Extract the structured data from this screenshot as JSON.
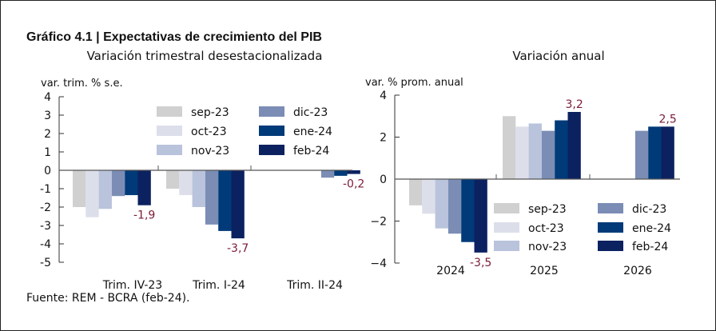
{
  "title": "Gráfico 4.1 | Expectativas de crecimiento del PIB",
  "source": "Fuente: REM - BCRA (feb-24).",
  "colors": {
    "sep-23": "#d0d0d0",
    "oct-23": "#dcdfea",
    "nov-23": "#b9c3dc",
    "dic-23": "#7b8db5",
    "ene-24": "#003a78",
    "feb-24": "#0c2160",
    "label": "#7a1c36"
  },
  "chart_data": [
    {
      "type": "bar",
      "title": "Variación trimestral desestacionalizada",
      "ylabel": "var. trim. % s.e.",
      "xlabel": "",
      "ylim": [
        -5,
        4
      ],
      "yticks": [
        4,
        3,
        2,
        1,
        0,
        -1,
        -2,
        -3,
        -4,
        -5
      ],
      "categories": [
        "Trim. IV-23",
        "Trim. I-24",
        "Trim. II-24"
      ],
      "legend": [
        "sep-23",
        "oct-23",
        "nov-23",
        "dic-23",
        "ene-24",
        "feb-24"
      ],
      "legend_position": "top-right",
      "series": [
        {
          "name": "sep-23",
          "values": [
            -2.0,
            -1.0,
            null
          ]
        },
        {
          "name": "oct-23",
          "values": [
            -2.55,
            -1.35,
            null
          ]
        },
        {
          "name": "nov-23",
          "values": [
            -2.1,
            -2.0,
            null
          ]
        },
        {
          "name": "dic-23",
          "values": [
            -1.4,
            -2.95,
            -0.4
          ]
        },
        {
          "name": "ene-24",
          "values": [
            -1.35,
            -3.3,
            -0.3
          ]
        },
        {
          "name": "feb-24",
          "values": [
            -1.9,
            -3.7,
            -0.2
          ]
        }
      ],
      "data_labels": [
        "-1,9",
        "-3,7",
        "-0,2"
      ]
    },
    {
      "type": "bar",
      "title": "Variación anual",
      "ylabel": "var. % prom. anual",
      "xlabel": "",
      "ylim": [
        -4,
        4
      ],
      "yticks": [
        4,
        2,
        0,
        -2,
        -4
      ],
      "ytick_labels": [
        "4",
        "2",
        "0",
        "−2",
        "−4"
      ],
      "categories": [
        "2024",
        "2025",
        "2026"
      ],
      "legend": [
        "sep-23",
        "oct-23",
        "nov-23",
        "dic-23",
        "ene-24",
        "feb-24"
      ],
      "legend_position": "bottom-right",
      "series": [
        {
          "name": "sep-23",
          "values": [
            -1.25,
            3.0,
            null
          ]
        },
        {
          "name": "oct-23",
          "values": [
            -1.65,
            2.5,
            null
          ]
        },
        {
          "name": "nov-23",
          "values": [
            -2.35,
            2.65,
            null
          ]
        },
        {
          "name": "dic-23",
          "values": [
            -2.6,
            2.3,
            2.3
          ]
        },
        {
          "name": "ene-24",
          "values": [
            -3.0,
            2.8,
            2.5
          ]
        },
        {
          "name": "feb-24",
          "values": [
            -3.5,
            3.2,
            2.5
          ]
        }
      ],
      "data_labels": [
        "-3,5",
        "3,2",
        "2,5"
      ]
    }
  ]
}
